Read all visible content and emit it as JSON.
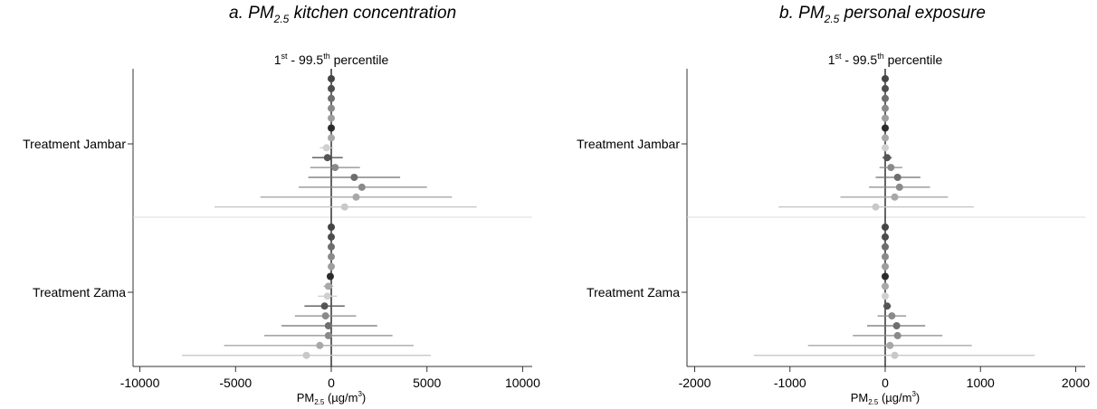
{
  "panels": [
    {
      "letter": "a.",
      "title_main": "PM",
      "title_sub": "2.5",
      "title_rest": " kitchen concentration"
    },
    {
      "letter": "b.",
      "title_main": "PM",
      "title_sub": "2.5",
      "title_rest": " personal exposure"
    }
  ],
  "chart_data": [
    {
      "type": "scatter",
      "subtitle": "1st - 99.5th percentile",
      "subtitle_parts": [
        "1",
        "st",
        " - 99.5",
        "th",
        " percentile"
      ],
      "xlabel": "PM2.5 (µg/m3)",
      "xlabel_parts": [
        "PM",
        "2.5",
        " (µg/m",
        "3",
        ")"
      ],
      "xlim": [
        -10500,
        10500
      ],
      "xticks": [
        -10000,
        -5000,
        0,
        5000,
        10000
      ],
      "xtick_labels": [
        "-10000",
        "-5000",
        "0",
        "5000",
        "10000"
      ],
      "groups": [
        {
          "label": "Treatment Jambar",
          "estimates": [
            {
              "est": 0,
              "lo": 0,
              "hi": 0,
              "color": "#454545"
            },
            {
              "est": 0,
              "lo": 0,
              "hi": 0,
              "color": "#4d4d4d"
            },
            {
              "est": 0,
              "lo": 0,
              "hi": 0,
              "color": "#6e6e6e"
            },
            {
              "est": 0,
              "lo": 0,
              "hi": 0,
              "color": "#8a8a8a"
            },
            {
              "est": 0,
              "lo": 0,
              "hi": 0,
              "color": "#9e9e9e"
            },
            {
              "est": 0,
              "lo": 0,
              "hi": 0,
              "color": "#2b2b2b"
            },
            {
              "est": 0,
              "lo": -100,
              "hi": 100,
              "color": "#a8a8a8"
            },
            {
              "est": -250,
              "lo": -600,
              "hi": 100,
              "color": "#d0d0d0"
            },
            {
              "est": -200,
              "lo": -1000,
              "hi": 600,
              "color": "#555555"
            },
            {
              "est": 200,
              "lo": -1100,
              "hi": 1500,
              "color": "#8a8a8a"
            },
            {
              "est": 1200,
              "lo": -1200,
              "hi": 3600,
              "color": "#6e6e6e"
            },
            {
              "est": 1600,
              "lo": -1700,
              "hi": 5000,
              "color": "#8a8a8a"
            },
            {
              "est": 1300,
              "lo": -3700,
              "hi": 6300,
              "color": "#a8a8a8"
            },
            {
              "est": 700,
              "lo": -6100,
              "hi": 7600,
              "color": "#c8c8c8"
            }
          ]
        },
        {
          "label": "Treatment Zama",
          "estimates": [
            {
              "est": 0,
              "lo": 0,
              "hi": 0,
              "color": "#454545"
            },
            {
              "est": 0,
              "lo": 0,
              "hi": 0,
              "color": "#4d4d4d"
            },
            {
              "est": 0,
              "lo": 0,
              "hi": 0,
              "color": "#6e6e6e"
            },
            {
              "est": 0,
              "lo": 0,
              "hi": 0,
              "color": "#8a8a8a"
            },
            {
              "est": 0,
              "lo": 0,
              "hi": 0,
              "color": "#9e9e9e"
            },
            {
              "est": -50,
              "lo": -100,
              "hi": 0,
              "color": "#2b2b2b"
            },
            {
              "est": -150,
              "lo": -400,
              "hi": 100,
              "color": "#a8a8a8"
            },
            {
              "est": -200,
              "lo": -700,
              "hi": 300,
              "color": "#d0d0d0"
            },
            {
              "est": -350,
              "lo": -1400,
              "hi": 700,
              "color": "#555555"
            },
            {
              "est": -300,
              "lo": -1900,
              "hi": 1300,
              "color": "#8a8a8a"
            },
            {
              "est": -150,
              "lo": -2600,
              "hi": 2400,
              "color": "#6e6e6e"
            },
            {
              "est": -150,
              "lo": -3500,
              "hi": 3200,
              "color": "#8a8a8a"
            },
            {
              "est": -600,
              "lo": -5600,
              "hi": 4300,
              "color": "#a8a8a8"
            },
            {
              "est": -1300,
              "lo": -7800,
              "hi": 5200,
              "color": "#c8c8c8"
            }
          ]
        }
      ]
    },
    {
      "type": "scatter",
      "subtitle": "1st - 99.5th percentile",
      "subtitle_parts": [
        "1",
        "st",
        " - 99.5",
        "th",
        " percentile"
      ],
      "xlabel": "PM2.5 (µg/m3)",
      "xlabel_parts": [
        "PM",
        "2.5",
        " (µg/m",
        "3",
        ")"
      ],
      "xlim": [
        -2100,
        2100
      ],
      "xticks": [
        -2000,
        -1000,
        0,
        1000,
        2000
      ],
      "xtick_labels": [
        "-2000",
        "-1000",
        "0",
        "1000",
        "2000"
      ],
      "groups": [
        {
          "label": "Treatment Jambar",
          "estimates": [
            {
              "est": 0,
              "lo": 0,
              "hi": 0,
              "color": "#454545"
            },
            {
              "est": 0,
              "lo": 0,
              "hi": 0,
              "color": "#4d4d4d"
            },
            {
              "est": 0,
              "lo": 0,
              "hi": 0,
              "color": "#6e6e6e"
            },
            {
              "est": 0,
              "lo": 0,
              "hi": 0,
              "color": "#8a8a8a"
            },
            {
              "est": 0,
              "lo": 0,
              "hi": 0,
              "color": "#9e9e9e"
            },
            {
              "est": 0,
              "lo": 0,
              "hi": 0,
              "color": "#2b2b2b"
            },
            {
              "est": 0,
              "lo": -10,
              "hi": 10,
              "color": "#a8a8a8"
            },
            {
              "est": 0,
              "lo": -30,
              "hi": 30,
              "color": "#d0d0d0"
            },
            {
              "est": 20,
              "lo": -30,
              "hi": 70,
              "color": "#555555"
            },
            {
              "est": 60,
              "lo": -60,
              "hi": 180,
              "color": "#8a8a8a"
            },
            {
              "est": 130,
              "lo": -100,
              "hi": 370,
              "color": "#6e6e6e"
            },
            {
              "est": 150,
              "lo": -170,
              "hi": 470,
              "color": "#8a8a8a"
            },
            {
              "est": 100,
              "lo": -470,
              "hi": 660,
              "color": "#a8a8a8"
            },
            {
              "est": -100,
              "lo": -1120,
              "hi": 930,
              "color": "#c8c8c8"
            }
          ]
        },
        {
          "label": "Treatment Zama",
          "estimates": [
            {
              "est": 0,
              "lo": 0,
              "hi": 0,
              "color": "#454545"
            },
            {
              "est": 0,
              "lo": 0,
              "hi": 0,
              "color": "#4d4d4d"
            },
            {
              "est": 0,
              "lo": 0,
              "hi": 0,
              "color": "#6e6e6e"
            },
            {
              "est": 0,
              "lo": 0,
              "hi": 0,
              "color": "#8a8a8a"
            },
            {
              "est": 0,
              "lo": 0,
              "hi": 0,
              "color": "#9e9e9e"
            },
            {
              "est": 0,
              "lo": 0,
              "hi": 0,
              "color": "#2b2b2b"
            },
            {
              "est": 0,
              "lo": -10,
              "hi": 10,
              "color": "#a8a8a8"
            },
            {
              "est": 0,
              "lo": -30,
              "hi": 30,
              "color": "#d0d0d0"
            },
            {
              "est": 20,
              "lo": -20,
              "hi": 60,
              "color": "#555555"
            },
            {
              "est": 70,
              "lo": -80,
              "hi": 220,
              "color": "#8a8a8a"
            },
            {
              "est": 120,
              "lo": -190,
              "hi": 420,
              "color": "#6e6e6e"
            },
            {
              "est": 130,
              "lo": -340,
              "hi": 600,
              "color": "#8a8a8a"
            },
            {
              "est": 50,
              "lo": -810,
              "hi": 910,
              "color": "#a8a8a8"
            },
            {
              "est": 100,
              "lo": -1380,
              "hi": 1570,
              "color": "#c8c8c8"
            }
          ]
        }
      ]
    }
  ]
}
